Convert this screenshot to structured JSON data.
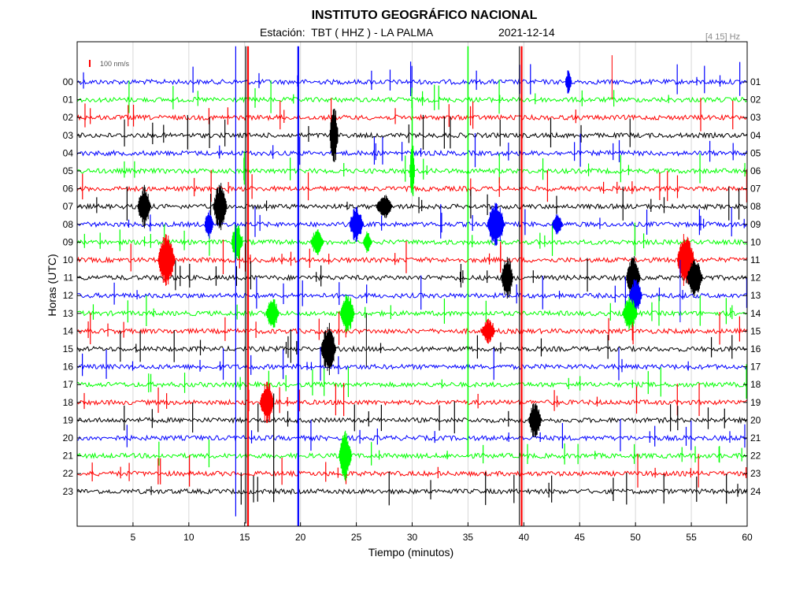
{
  "header": {
    "title": "INSTITUTO GEOGRÁFICO NACIONAL",
    "station_line": "Estación:  TBT ( HHZ ) - LA PALMA",
    "date": "2021-12-14",
    "band": "[4 15] Hz"
  },
  "chart_data": {
    "type": "line",
    "title": "INSTITUTO GEOGRÁFICO NACIONAL",
    "xlabel": "Tiempo (minutos)",
    "ylabel": "Horas (UTC)",
    "xlim": [
      0,
      60
    ],
    "x_ticks": [
      5,
      10,
      15,
      20,
      25,
      30,
      35,
      40,
      45,
      50,
      55,
      60
    ],
    "left_tick_labels": [
      "00",
      "01",
      "02",
      "03",
      "04",
      "05",
      "06",
      "07",
      "08",
      "09",
      "10",
      "11",
      "12",
      "13",
      "14",
      "15",
      "16",
      "17",
      "18",
      "19",
      "20",
      "21",
      "22",
      "23"
    ],
    "right_tick_labels": [
      "01",
      "02",
      "03",
      "04",
      "05",
      "06",
      "07",
      "08",
      "09",
      "10",
      "11",
      "12",
      "13",
      "14",
      "15",
      "16",
      "17",
      "18",
      "19",
      "20",
      "21",
      "22",
      "23",
      "24"
    ],
    "trace_colors": [
      "#0000ff",
      "#00ff00",
      "#ff0000",
      "#000000"
    ],
    "scale_bar_label": "100 nm/s",
    "grid": true,
    "events": [
      {
        "hour": 7,
        "minute": 6.0,
        "width": 1.2,
        "amp": 1.4
      },
      {
        "hour": 7,
        "minute": 12.8,
        "width": 1.3,
        "amp": 1.6
      },
      {
        "hour": 7,
        "minute": 27.5,
        "width": 1.5,
        "amp": 0.8
      },
      {
        "hour": 8,
        "minute": 11.8,
        "width": 0.8,
        "amp": 1.0
      },
      {
        "hour": 8,
        "minute": 25.0,
        "width": 1.3,
        "amp": 1.2
      },
      {
        "hour": 8,
        "minute": 37.5,
        "width": 1.6,
        "amp": 1.6
      },
      {
        "hour": 8,
        "minute": 43.0,
        "width": 1.0,
        "amp": 0.7
      },
      {
        "hour": 9,
        "minute": 14.3,
        "width": 1.0,
        "amp": 1.4
      },
      {
        "hour": 9,
        "minute": 21.5,
        "width": 1.2,
        "amp": 0.9
      },
      {
        "hour": 10,
        "minute": 8.0,
        "width": 1.6,
        "amp": 1.8
      },
      {
        "hour": 10,
        "minute": 54.5,
        "width": 1.6,
        "amp": 1.8
      },
      {
        "hour": 11,
        "minute": 38.5,
        "width": 1.1,
        "amp": 1.6
      },
      {
        "hour": 11,
        "minute": 49.8,
        "width": 1.3,
        "amp": 1.6
      },
      {
        "hour": 11,
        "minute": 55.3,
        "width": 1.5,
        "amp": 1.2
      },
      {
        "hour": 12,
        "minute": 50.0,
        "width": 1.2,
        "amp": 1.2
      },
      {
        "hour": 13,
        "minute": 17.5,
        "width": 1.2,
        "amp": 1.1
      },
      {
        "hour": 13,
        "minute": 24.2,
        "width": 1.3,
        "amp": 1.3
      },
      {
        "hour": 13,
        "minute": 49.5,
        "width": 1.4,
        "amp": 1.1
      },
      {
        "hour": 14,
        "minute": 36.8,
        "width": 1.3,
        "amp": 0.8
      },
      {
        "hour": 15,
        "minute": 22.5,
        "width": 1.4,
        "amp": 1.7
      },
      {
        "hour": 18,
        "minute": 17.0,
        "width": 1.3,
        "amp": 1.5
      },
      {
        "hour": 19,
        "minute": 41.0,
        "width": 1.2,
        "amp": 1.2
      },
      {
        "hour": 21,
        "minute": 24.0,
        "width": 1.2,
        "amp": 1.7
      },
      {
        "hour": 3,
        "minute": 23.0,
        "width": 0.8,
        "amp": 2.0
      },
      {
        "hour": 5,
        "minute": 30.0,
        "width": 0.5,
        "amp": 2.0
      },
      {
        "hour": 0,
        "minute": 44.0,
        "width": 0.6,
        "amp": 0.8
      },
      {
        "hour": 9,
        "minute": 26.0,
        "width": 0.8,
        "amp": 0.7
      }
    ],
    "spikes": [
      {
        "minute": 15.3,
        "top_hour": -2,
        "bottom_hour": 25.2,
        "color": "#ff0000",
        "w": 2.2
      },
      {
        "minute": 15.1,
        "top_hour": -2,
        "bottom_hour": 24.8,
        "color": "#000000",
        "w": 1.2
      },
      {
        "minute": 19.8,
        "top_hour": -2,
        "bottom_hour": 25.2,
        "color": "#0000ff",
        "w": 2.2
      },
      {
        "minute": 39.8,
        "top_hour": -2,
        "bottom_hour": 25.2,
        "color": "#ff0000",
        "w": 2.2
      },
      {
        "minute": 39.6,
        "top_hour": -2,
        "bottom_hour": 24.9,
        "color": "#000000",
        "w": 1.0
      },
      {
        "minute": 14.2,
        "top_hour": -2,
        "bottom_hour": 24.4,
        "color": "#0000ff",
        "w": 1.2
      },
      {
        "minute": 35.0,
        "top_hour": -2,
        "bottom_hour": 21.0,
        "color": "#00ff00",
        "w": 1.5
      },
      {
        "minute": 30.0,
        "top_hour": 1,
        "bottom_hour": 6,
        "color": "#00ff00",
        "w": 1.5
      },
      {
        "minute": 54.0,
        "top_hour": 10,
        "bottom_hour": 13.5,
        "color": "#0000ff",
        "w": 1.0
      },
      {
        "minute": 47.9,
        "top_hour": -1.5,
        "bottom_hour": 1,
        "color": "#ff0000",
        "w": 1.0
      },
      {
        "minute": 17.6,
        "top_hour": 17.5,
        "bottom_hour": 23.6,
        "color": "#000000",
        "w": 1.2
      },
      {
        "minute": 25.9,
        "top_hour": 13,
        "bottom_hour": 16,
        "color": "#000000",
        "w": 1.0
      }
    ]
  }
}
